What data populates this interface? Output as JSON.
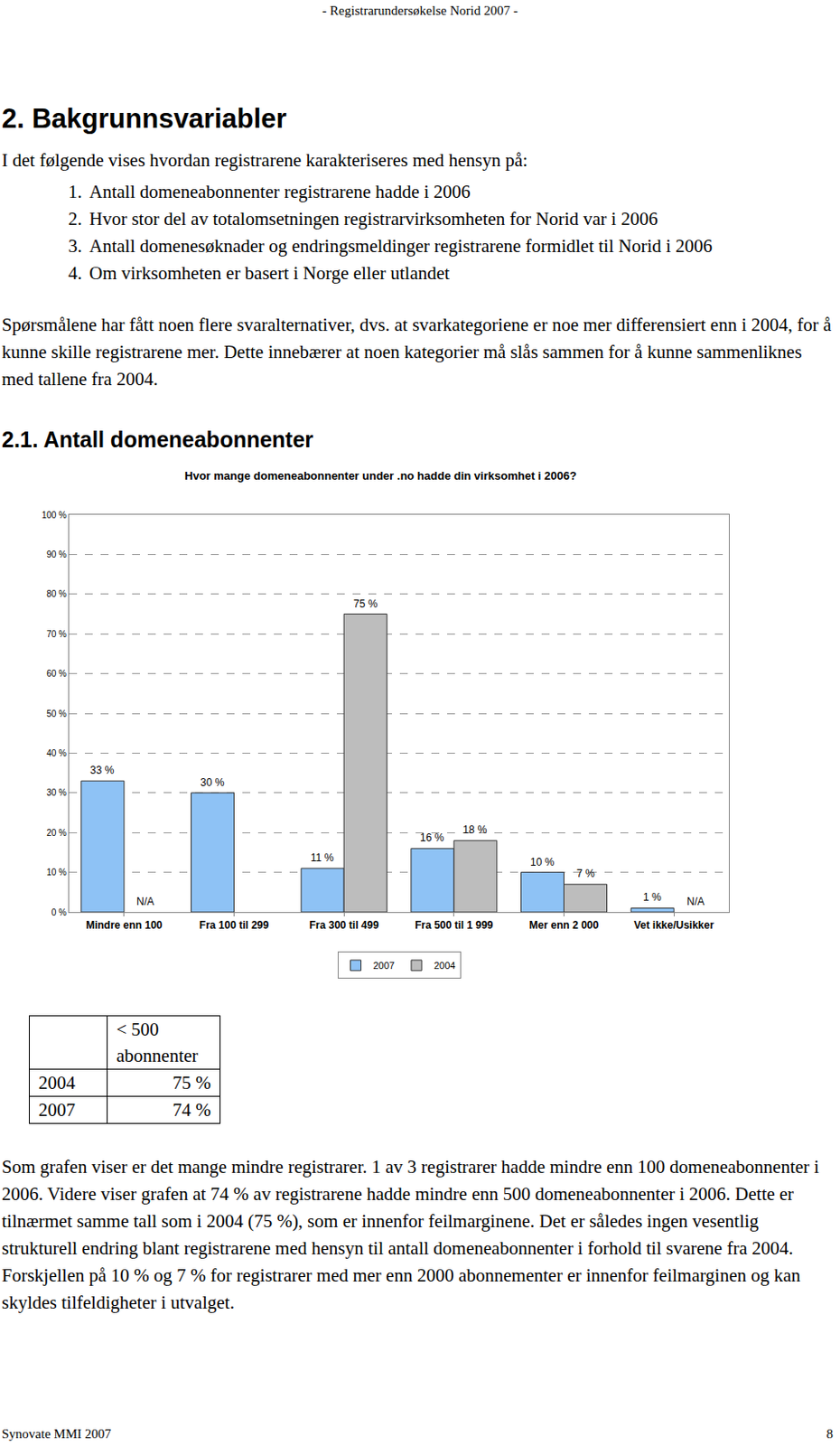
{
  "document": {
    "header": "- Registrarundersøkelse Norid 2007 -",
    "heading": "2. Bakgrunnsvariabler",
    "intro": "I det følgende vises hvordan registrarene karakteriseres med hensyn på:",
    "list": [
      {
        "number": "1.",
        "text": "Antall domeneabonnenter registrarene hadde i 2006"
      },
      {
        "number": "2.",
        "text": "Hvor stor del av totalomsetningen registrarvirksomheten for Norid var i 2006"
      },
      {
        "number": "3.",
        "text": "Antall domenesøknader og endringsmeldinger registrarene formidlet til Norid i 2006"
      },
      {
        "number": "4.",
        "text": "Om virksomheten er basert i Norge eller utlandet"
      }
    ],
    "note": "Spørsmålene har fått noen flere svaralternativer, dvs. at svarkategoriene er noe mer differensiert enn i 2004, for å kunne skille registrarene mer. Dette innebærer at noen kategorier må slås sammen for å kunne sammenliknes med tallene fra 2004.",
    "section_heading": "2.1. Antall domeneabonnenter",
    "table": {
      "header": [
        "",
        "< 500 abonnenter"
      ],
      "rows": [
        [
          "2004",
          "75 %"
        ],
        [
          "2007",
          "74 %"
        ]
      ]
    },
    "conclusion": "Som grafen viser er det mange mindre registrarer. 1 av 3 registrarer hadde mindre enn 100 domeneabonnenter i 2006. Videre viser grafen at 74 % av registrarene hadde mindre enn 500 domeneabonnenter i 2006. Dette er tilnærmet samme tall som i 2004 (75 %), som er innenfor feilmarginene. Det er således ingen vesentlig strukturell endring blant registrarene med hensyn til antall domeneabonnenter i forhold til svarene fra 2004. Forskjellen på 10 % og 7 % for registrarer med mer enn 2000 abonnementer er innenfor feilmarginen og kan skyldes tilfeldigheter i utvalget.",
    "footer": {
      "left": "Synovate MMI 2007",
      "page": "8"
    }
  },
  "chart_data": {
    "type": "bar",
    "title": "Hvor mange domeneabonnenter under .no hadde din virksomhet i 2006?",
    "categories": [
      "Mindre enn 100",
      "Fra 100 til 299",
      "Fra 300 til 499",
      "Fra 500 til 1 999",
      "Mer enn 2 000",
      "Vet ikke/Usikker"
    ],
    "series": [
      {
        "name": "2007",
        "color": "#8ec2f5",
        "values": [
          33,
          30,
          11,
          16,
          10,
          1
        ],
        "value_labels": [
          "33 %",
          "30 %",
          "11 %",
          "16 %",
          "10 %",
          "1 %"
        ]
      },
      {
        "name": "2004",
        "color": "#bdbdbd",
        "values": [
          null,
          null,
          75,
          18,
          7,
          null
        ],
        "value_labels": [
          "N/A",
          null,
          "75 %",
          "18 %",
          "7 %",
          "N/A"
        ]
      }
    ],
    "ylim": [
      0,
      100
    ],
    "yticks": [
      {
        "value": 0,
        "label": "0 %"
      },
      {
        "value": 10,
        "label": "10 %"
      },
      {
        "value": 20,
        "label": "20 %"
      },
      {
        "value": 30,
        "label": "30 %"
      },
      {
        "value": 40,
        "label": "40 %"
      },
      {
        "value": 50,
        "label": "50 %"
      },
      {
        "value": 60,
        "label": "60 %"
      },
      {
        "value": 70,
        "label": "70 %"
      },
      {
        "value": 80,
        "label": "80 %"
      },
      {
        "value": 90,
        "label": "90 %"
      },
      {
        "value": 100,
        "label": "100 %"
      }
    ],
    "grid": true,
    "legend": "bottom",
    "data_labels": true
  }
}
